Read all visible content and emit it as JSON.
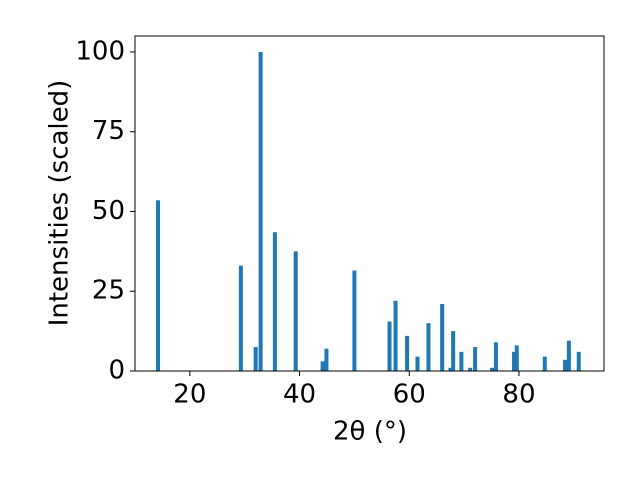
{
  "chart_data": {
    "type": "bar",
    "xlabel": "2θ (°)",
    "ylabel": "Intensities (scaled)",
    "x": [
      14.2,
      29.3,
      32.0,
      32.9,
      35.5,
      39.3,
      44.2,
      44.9,
      50.0,
      56.4,
      57.5,
      59.6,
      61.5,
      63.5,
      66.0,
      67.5,
      68.0,
      69.5,
      71.1,
      72.0,
      75.1,
      75.8,
      79.1,
      79.6,
      84.7,
      88.4,
      89.1,
      90.9
    ],
    "values": [
      53.5,
      33,
      7.5,
      100,
      43.5,
      37.5,
      3,
      7,
      31.5,
      15.5,
      22,
      11,
      4.5,
      15,
      21,
      1,
      12.5,
      6,
      1,
      7.5,
      1,
      9,
      6,
      8,
      4.5,
      3.5,
      9.5,
      6
    ],
    "color": "#1f77b4",
    "xlim": [
      10,
      95.5
    ],
    "xticks": [
      20,
      40,
      60,
      80
    ],
    "ylim": [
      0,
      105
    ],
    "yticks": [
      0,
      25,
      50,
      75,
      100
    ],
    "grid": false
  }
}
